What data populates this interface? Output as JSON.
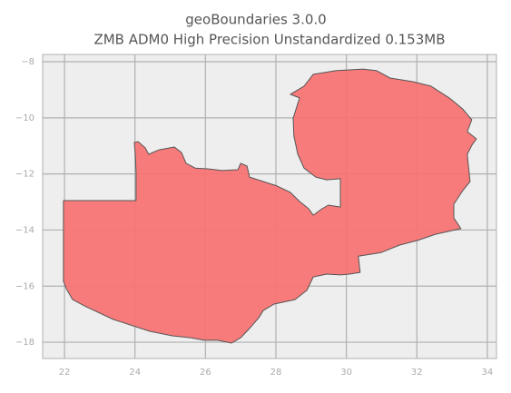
{
  "chart_data": {
    "type": "map",
    "title": "geoBoundaries 3.0.0",
    "subtitle": "ZMB ADM0 High Precision Unstandardized 0.153MB",
    "color": "#f87474",
    "edge_color": "#555555",
    "grid": true,
    "xlim": [
      21.38,
      34.26
    ],
    "ylim": [
      -18.58,
      -7.74
    ],
    "xticks": [
      22,
      24,
      26,
      28,
      30,
      32,
      34
    ],
    "yticks": [
      {
        "value": -8,
        "label": "−8"
      },
      {
        "value": -10,
        "label": "−10"
      },
      {
        "value": -12,
        "label": "−12"
      },
      {
        "value": -14,
        "label": "−14"
      },
      {
        "value": -16,
        "label": "−16"
      },
      {
        "value": -18,
        "label": "−18"
      }
    ],
    "x": [
      21.97,
      24.03,
      24.03,
      24.01,
      23.98,
      24.09,
      24.29,
      24.39,
      24.68,
      25.12,
      25.32,
      25.45,
      25.71,
      26.09,
      26.48,
      26.92,
      27.0,
      27.18,
      27.25,
      27.64,
      28.03,
      28.41,
      28.67,
      28.93,
      29.06,
      29.31,
      29.49,
      29.83,
      29.83,
      29.44,
      29.13,
      28.8,
      28.62,
      28.51,
      28.49,
      28.67,
      28.41,
      28.8,
      29.06,
      29.7,
      30.47,
      30.86,
      31.24,
      31.89,
      32.4,
      32.92,
      33.3,
      33.56,
      33.43,
      33.69,
      33.56,
      33.43,
      33.51,
      33.3,
      33.05,
      33.05,
      33.25,
      32.53,
      32.02,
      31.5,
      30.99,
      30.34,
      30.39,
      30.09,
      29.83,
      29.44,
      29.06,
      28.88,
      28.54,
      27.95,
      27.64,
      27.51,
      27.25,
      27.0,
      26.74,
      26.35,
      25.97,
      25.58,
      25.06,
      24.42,
      23.39,
      22.62,
      22.23,
      22.05,
      21.97,
      21.97
    ],
    "y": [
      -12.95,
      -12.95,
      -11.95,
      -11.3,
      -10.88,
      -10.85,
      -11.07,
      -11.3,
      -11.14,
      -11.04,
      -11.24,
      -11.62,
      -11.79,
      -11.82,
      -11.88,
      -11.85,
      -11.62,
      -11.72,
      -12.11,
      -12.27,
      -12.43,
      -12.66,
      -12.98,
      -13.24,
      -13.47,
      -13.24,
      -13.11,
      -13.18,
      -12.17,
      -12.21,
      -12.11,
      -11.79,
      -11.3,
      -10.65,
      -10.01,
      -9.29,
      -9.16,
      -8.87,
      -8.45,
      -8.32,
      -8.26,
      -8.32,
      -8.58,
      -8.71,
      -8.87,
      -9.29,
      -9.68,
      -10.07,
      -10.49,
      -10.75,
      -10.98,
      -11.3,
      -12.27,
      -12.6,
      -13.08,
      -13.57,
      -13.95,
      -14.15,
      -14.37,
      -14.54,
      -14.8,
      -14.93,
      -15.51,
      -15.57,
      -15.6,
      -15.57,
      -15.67,
      -16.15,
      -16.48,
      -16.64,
      -16.87,
      -17.13,
      -17.51,
      -17.84,
      -18.03,
      -17.93,
      -17.93,
      -17.84,
      -17.77,
      -17.61,
      -17.19,
      -16.74,
      -16.48,
      -16.09,
      -15.83,
      -13.89
    ]
  }
}
